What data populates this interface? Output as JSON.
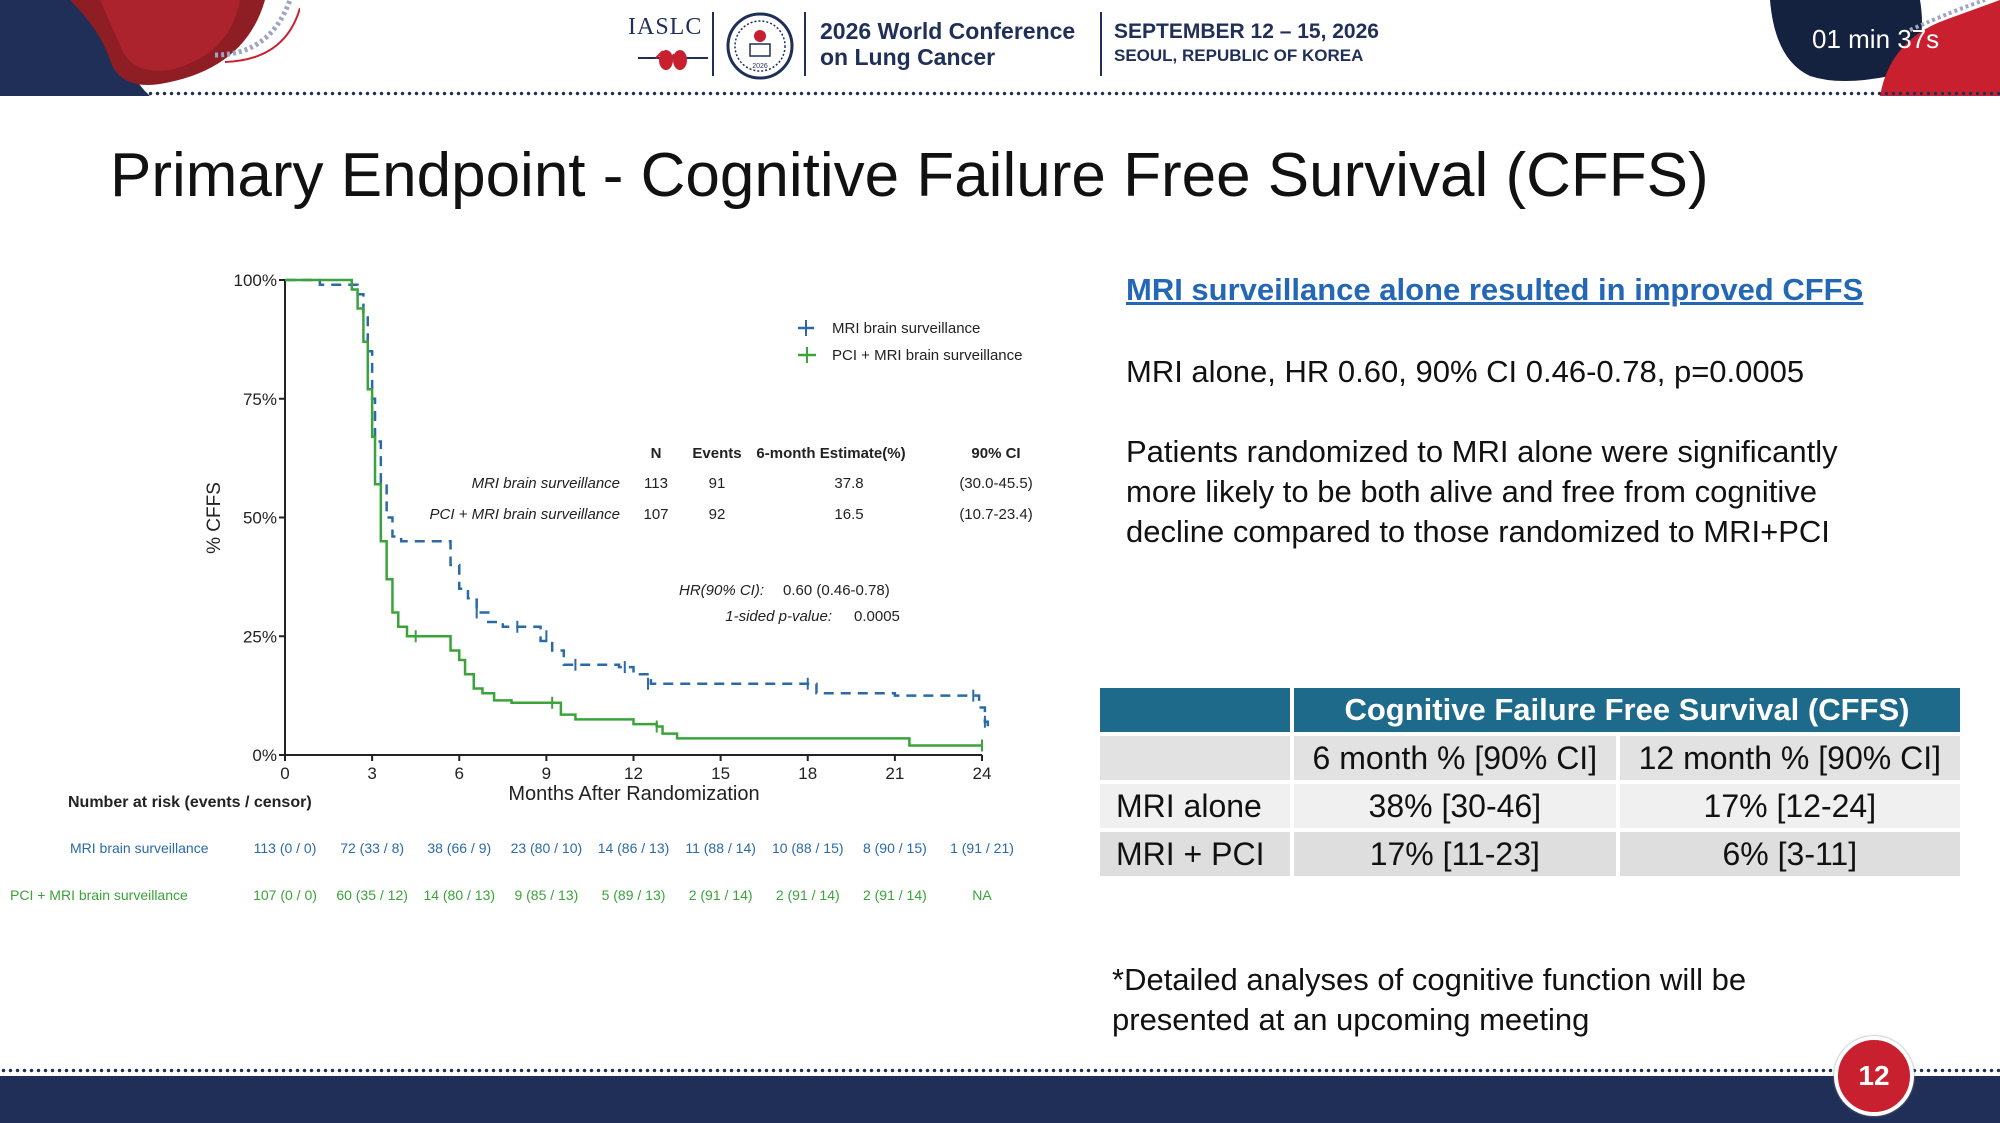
{
  "header": {
    "org": "IASLC",
    "conference_line1": "2026 World Conference",
    "conference_line2": "on Lung Cancer",
    "dates": "SEPTEMBER 12 – 15, 2026",
    "location": "SEOUL, REPUBLIC OF KOREA",
    "seal_text": "2026",
    "timer": "01 min 37s"
  },
  "slide": {
    "title": "Primary Endpoint - Cognitive Failure Free Survival (CFFS)",
    "page_number": "12"
  },
  "colors": {
    "navy": "#1f2f58",
    "accent_red": "#c8202f",
    "mri_series": "#2b6aa6",
    "pci_series": "#3aa33a",
    "table_header": "#1e6a8a",
    "heading_blue": "#2467b6"
  },
  "chart_data": {
    "type": "line",
    "subtype": "kaplan-meier",
    "xlabel": "Months After Randomization",
    "ylabel": "% CFFS",
    "xlim": [
      0,
      24
    ],
    "ylim": [
      0,
      100
    ],
    "x_ticks": [
      "0",
      "3",
      "6",
      "9",
      "12",
      "15",
      "18",
      "21",
      "24"
    ],
    "y_ticks": [
      "0%",
      "25%",
      "50%",
      "75%",
      "100%"
    ],
    "legend_position": "top-right",
    "series": [
      {
        "name": "MRI brain surveillance",
        "style": "dashed",
        "color": "#2b6aa6",
        "points": [
          [
            0,
            100
          ],
          [
            1.2,
            100
          ],
          [
            1.2,
            99
          ],
          [
            2.3,
            99
          ],
          [
            2.5,
            97
          ],
          [
            2.7,
            93
          ],
          [
            2.85,
            85
          ],
          [
            3.0,
            75
          ],
          [
            3.1,
            66
          ],
          [
            3.3,
            57
          ],
          [
            3.5,
            50
          ],
          [
            3.7,
            46
          ],
          [
            4.0,
            45
          ],
          [
            5.5,
            45
          ],
          [
            5.7,
            40
          ],
          [
            6.0,
            35
          ],
          [
            6.3,
            33
          ],
          [
            6.6,
            30
          ],
          [
            7.0,
            28
          ],
          [
            7.5,
            27
          ],
          [
            8.5,
            27
          ],
          [
            8.8,
            24
          ],
          [
            9.2,
            22
          ],
          [
            9.6,
            19
          ],
          [
            10.5,
            19
          ],
          [
            11.5,
            18.5
          ],
          [
            12.0,
            17
          ],
          [
            12.6,
            15
          ],
          [
            14.0,
            15
          ],
          [
            18.0,
            15
          ],
          [
            18.3,
            13
          ],
          [
            21.0,
            12.5
          ],
          [
            23.8,
            12.5
          ],
          [
            23.9,
            10
          ],
          [
            24.1,
            7
          ],
          [
            24.2,
            5
          ]
        ]
      },
      {
        "name": "PCI + MRI brain surveillance",
        "style": "solid",
        "color": "#3aa33a",
        "points": [
          [
            0,
            100
          ],
          [
            2.0,
            100
          ],
          [
            2.3,
            98
          ],
          [
            2.5,
            94
          ],
          [
            2.7,
            87
          ],
          [
            2.85,
            77
          ],
          [
            3.0,
            67
          ],
          [
            3.1,
            57
          ],
          [
            3.3,
            45
          ],
          [
            3.5,
            37
          ],
          [
            3.7,
            30
          ],
          [
            3.9,
            27
          ],
          [
            4.2,
            25
          ],
          [
            5.5,
            25
          ],
          [
            5.7,
            22
          ],
          [
            6.0,
            20
          ],
          [
            6.2,
            17
          ],
          [
            6.5,
            14
          ],
          [
            6.8,
            13
          ],
          [
            7.2,
            11.5
          ],
          [
            7.8,
            11
          ],
          [
            9.2,
            11
          ],
          [
            9.5,
            8.5
          ],
          [
            10.0,
            7.5
          ],
          [
            11.5,
            7.5
          ],
          [
            12.0,
            6.5
          ],
          [
            12.8,
            6
          ],
          [
            13.0,
            4.5
          ],
          [
            13.5,
            3.5
          ],
          [
            21.0,
            3.5
          ],
          [
            21.5,
            2
          ],
          [
            24.0,
            2
          ]
        ]
      }
    ],
    "censor_marks": {
      "mri": [
        [
          6.6,
          30
        ],
        [
          8.0,
          27
        ],
        [
          9.0,
          25
        ],
        [
          10.0,
          19
        ],
        [
          11.7,
          18.5
        ],
        [
          12.5,
          15
        ],
        [
          18.0,
          15
        ],
        [
          23.7,
          12.5
        ],
        [
          24.1,
          7
        ]
      ],
      "pci": [
        [
          4.5,
          25
        ],
        [
          9.2,
          11
        ],
        [
          12.8,
          6
        ],
        [
          24.0,
          2
        ]
      ]
    },
    "stats_table": {
      "headers": [
        "N",
        "Events",
        "6-month Estimate(%)",
        "90% CI"
      ],
      "rows": [
        {
          "arm": "MRI brain surveillance",
          "N": "113",
          "events": "91",
          "estimate": "37.8",
          "ci": "(30.0-45.5)"
        },
        {
          "arm": "PCI + MRI brain surveillance",
          "N": "107",
          "events": "92",
          "estimate": "16.5",
          "ci": "(10.7-23.4)"
        }
      ]
    },
    "hr_label": "HR(90% CI):",
    "hr_value": "0.60 (0.46-0.78)",
    "p_label": "1-sided p-value:",
    "p_value": "0.0005",
    "risk_table": {
      "title": "Number at risk (events / censor)",
      "rows": [
        {
          "arm": "MRI brain surveillance",
          "values": [
            "113 (0 / 0)",
            "72 (33 / 8)",
            "38 (66 / 9)",
            "23 (80 / 10)",
            "14 (86 / 13)",
            "11 (88 / 14)",
            "10 (88 / 15)",
            "8 (90 / 15)",
            "1 (91 / 21)"
          ]
        },
        {
          "arm": "PCI + MRI brain surveillance",
          "values": [
            "107 (0 / 0)",
            "60 (35 / 12)",
            "14 (80 / 13)",
            "9 (85 / 13)",
            "5 (89 / 13)",
            "2 (91 / 14)",
            "2 (91 / 14)",
            "2 (91 / 14)",
            "NA"
          ]
        }
      ]
    }
  },
  "right": {
    "heading": "MRI surveillance alone resulted in improved CFFS",
    "stat_line": "MRI alone, HR 0.60, 90% CI 0.46-0.78, p=0.0005",
    "para_line1": "Patients randomized to MRI alone were significantly",
    "para_line2": "more likely to be both alive and free from cognitive",
    "para_line3": "decline compared to those randomized to MRI+PCI"
  },
  "cffs_table": {
    "title": "Cognitive Failure Free Survival (CFFS)",
    "col1": "6 month % [90% CI]",
    "col2": "12 month % [90% CI]",
    "rows": [
      {
        "label": "MRI alone",
        "m6": "38% [30-46]",
        "m12": "17% [12-24]"
      },
      {
        "label": "MRI + PCI",
        "m6": "17% [11-23]",
        "m12": "6% [3-11]"
      }
    ]
  },
  "footnote": {
    "line1": "*Detailed analyses of cognitive function will be",
    "line2": "presented at an upcoming meeting"
  }
}
